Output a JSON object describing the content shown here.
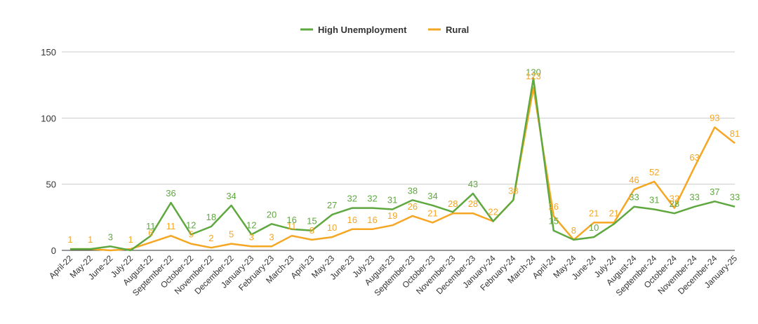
{
  "chart_data": {
    "type": "line",
    "title": "",
    "xlabel": "",
    "ylabel": "",
    "ylim": [
      0,
      150
    ],
    "yticks": [
      0,
      50,
      100,
      150
    ],
    "grid": true,
    "legend_position": "top-center",
    "categories": [
      "April-22",
      "May-22",
      "June-22",
      "July-22",
      "August-22",
      "September-22",
      "October-22",
      "November-22",
      "December-22",
      "January-23",
      "February-23",
      "March-23",
      "April-23",
      "May-23",
      "June-23",
      "July-23",
      "August-23",
      "September-23",
      "October-23",
      "November-23",
      "December-23",
      "January-24",
      "February-24",
      "March-24",
      "April-24",
      "May-24",
      "June-24",
      "July-24",
      "August-24",
      "September-24",
      "October-24",
      "November-24",
      "December-24",
      "January-25"
    ],
    "series": [
      {
        "name": "High Unemployment",
        "color": "#5fa83f",
        "values": [
          1,
          1,
          3,
          0,
          11,
          36,
          12,
          18,
          34,
          12,
          20,
          16,
          15,
          27,
          32,
          32,
          31,
          38,
          34,
          29,
          43,
          22,
          38,
          130,
          15,
          8,
          10,
          20,
          33,
          31,
          28,
          33,
          37,
          33
        ],
        "labels": [
          "",
          "",
          "3",
          "",
          "11",
          "36",
          "12",
          "18",
          "34",
          "12",
          "20",
          "16",
          "15",
          "27",
          "32",
          "32",
          "31",
          "38",
          "34",
          "",
          "43",
          "",
          "",
          "130",
          "15",
          "",
          "10",
          "",
          "33",
          "31",
          "28",
          "33",
          "37",
          "33"
        ]
      },
      {
        "name": "Rural",
        "color": "#f5a623",
        "values": [
          1,
          1,
          0,
          1,
          6,
          11,
          5,
          2,
          5,
          3,
          3,
          11,
          8,
          10,
          16,
          16,
          19,
          26,
          21,
          28,
          28,
          22,
          38,
          123,
          26,
          8,
          21,
          21,
          46,
          52,
          32,
          63,
          93,
          81
        ],
        "labels": [
          "1",
          "1",
          "",
          "1",
          "6",
          "11",
          "5",
          "2",
          "5",
          "3",
          "3",
          "11",
          "8",
          "10",
          "16",
          "16",
          "19",
          "26",
          "21",
          "28",
          "28",
          "22",
          "38",
          "123",
          "26",
          "8",
          "21",
          "21",
          "46",
          "52",
          "32",
          "63",
          "93",
          "81"
        ]
      }
    ]
  }
}
